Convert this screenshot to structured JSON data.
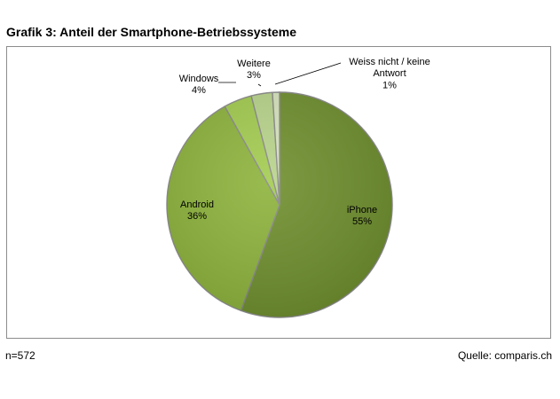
{
  "title": "Grafik 3: Anteil der Smartphone-Betriebssysteme",
  "footer": {
    "n": "n=572",
    "source": "Quelle: comparis.ch"
  },
  "chart_data": {
    "type": "pie",
    "title": "Grafik 3: Anteil der Smartphone-Betriebssysteme",
    "slices": [
      {
        "label": "iPhone",
        "value": 55,
        "value_label": "55%",
        "color": "#6f8f2e"
      },
      {
        "label": "Android",
        "value": 36,
        "value_label": "36%",
        "color": "#8db33c"
      },
      {
        "label": "Windows",
        "value": 4,
        "value_label": "4%",
        "color": "#a3cc50"
      },
      {
        "label": "Weitere",
        "value": 3,
        "value_label": "3%",
        "color": "#b9d48b"
      },
      {
        "label": "Weiss nicht / keine Antwort",
        "value": 1,
        "value_label": "1%",
        "color": "#d7e4bd"
      }
    ],
    "start_angle": "12 o'clock",
    "direction": "clockwise",
    "legend": "none",
    "data_labels": "outside-with-leaders for small slices, inside for large slices"
  }
}
